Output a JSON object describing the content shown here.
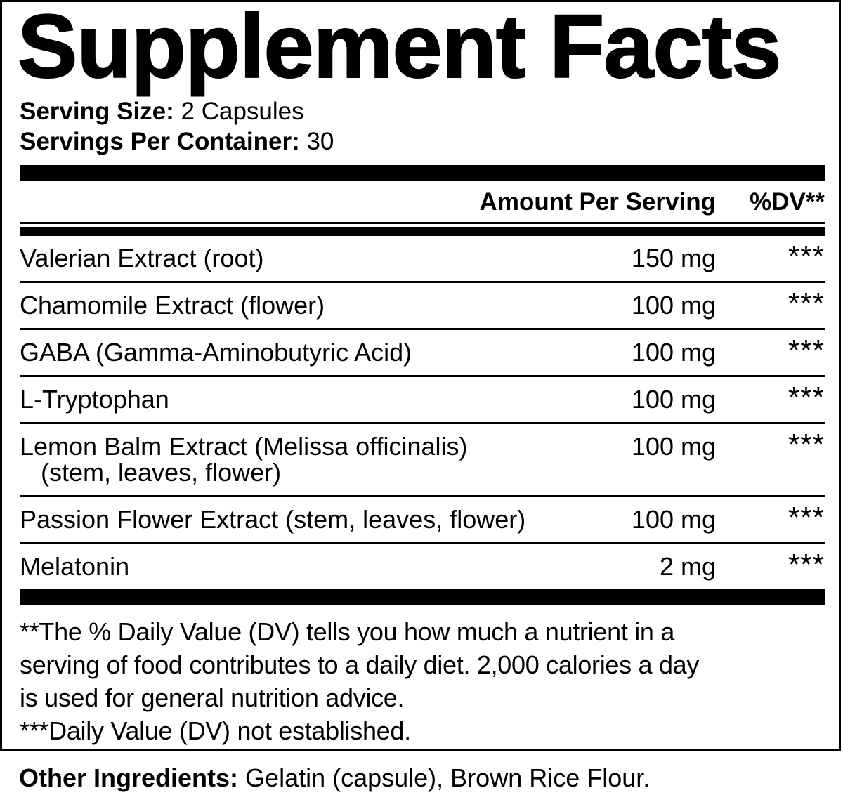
{
  "colors": {
    "ink": "#000000",
    "paper": "#ffffff"
  },
  "label": {
    "title": "Supplement Facts",
    "serving": {
      "size_label": "Serving Size:",
      "size_value": "2 Capsules",
      "per_container_label": "Servings Per Container:",
      "per_container_value": "30"
    },
    "table": {
      "amount_header": "Amount Per Serving",
      "dv_header": "%DV**",
      "rows": [
        {
          "name": "Valerian Extract (root)",
          "amount": "150 mg",
          "dv": "***"
        },
        {
          "name": "Chamomile Extract (flower)",
          "amount": "100 mg",
          "dv": "***"
        },
        {
          "name": "GABA (Gamma-Aminobutyric Acid)",
          "amount": "100 mg",
          "dv": "***"
        },
        {
          "name": "L-Tryptophan",
          "amount": "100 mg",
          "dv": "***"
        },
        {
          "name": "Lemon Balm Extract (Melissa officinalis)",
          "name2": "(stem, leaves, flower)",
          "amount": "100 mg",
          "dv": "***"
        },
        {
          "name": "Passion Flower Extract (stem, leaves, flower)",
          "amount": "100 mg",
          "dv": "***"
        },
        {
          "name": "Melatonin",
          "amount": "2 mg",
          "dv": "***"
        }
      ]
    },
    "footnotes": {
      "dv_note_lines": [
        "**The % Daily Value (DV) tells you how much a nutrient in a",
        "serving of food contributes to a daily diet. 2,000 calories a day",
        "is used for general nutrition advice."
      ],
      "not_established": "***Daily Value (DV) not established."
    },
    "other_ingredients": {
      "label": "Other Ingredients:",
      "value": "Gelatin (capsule), Brown Rice Flour."
    }
  }
}
